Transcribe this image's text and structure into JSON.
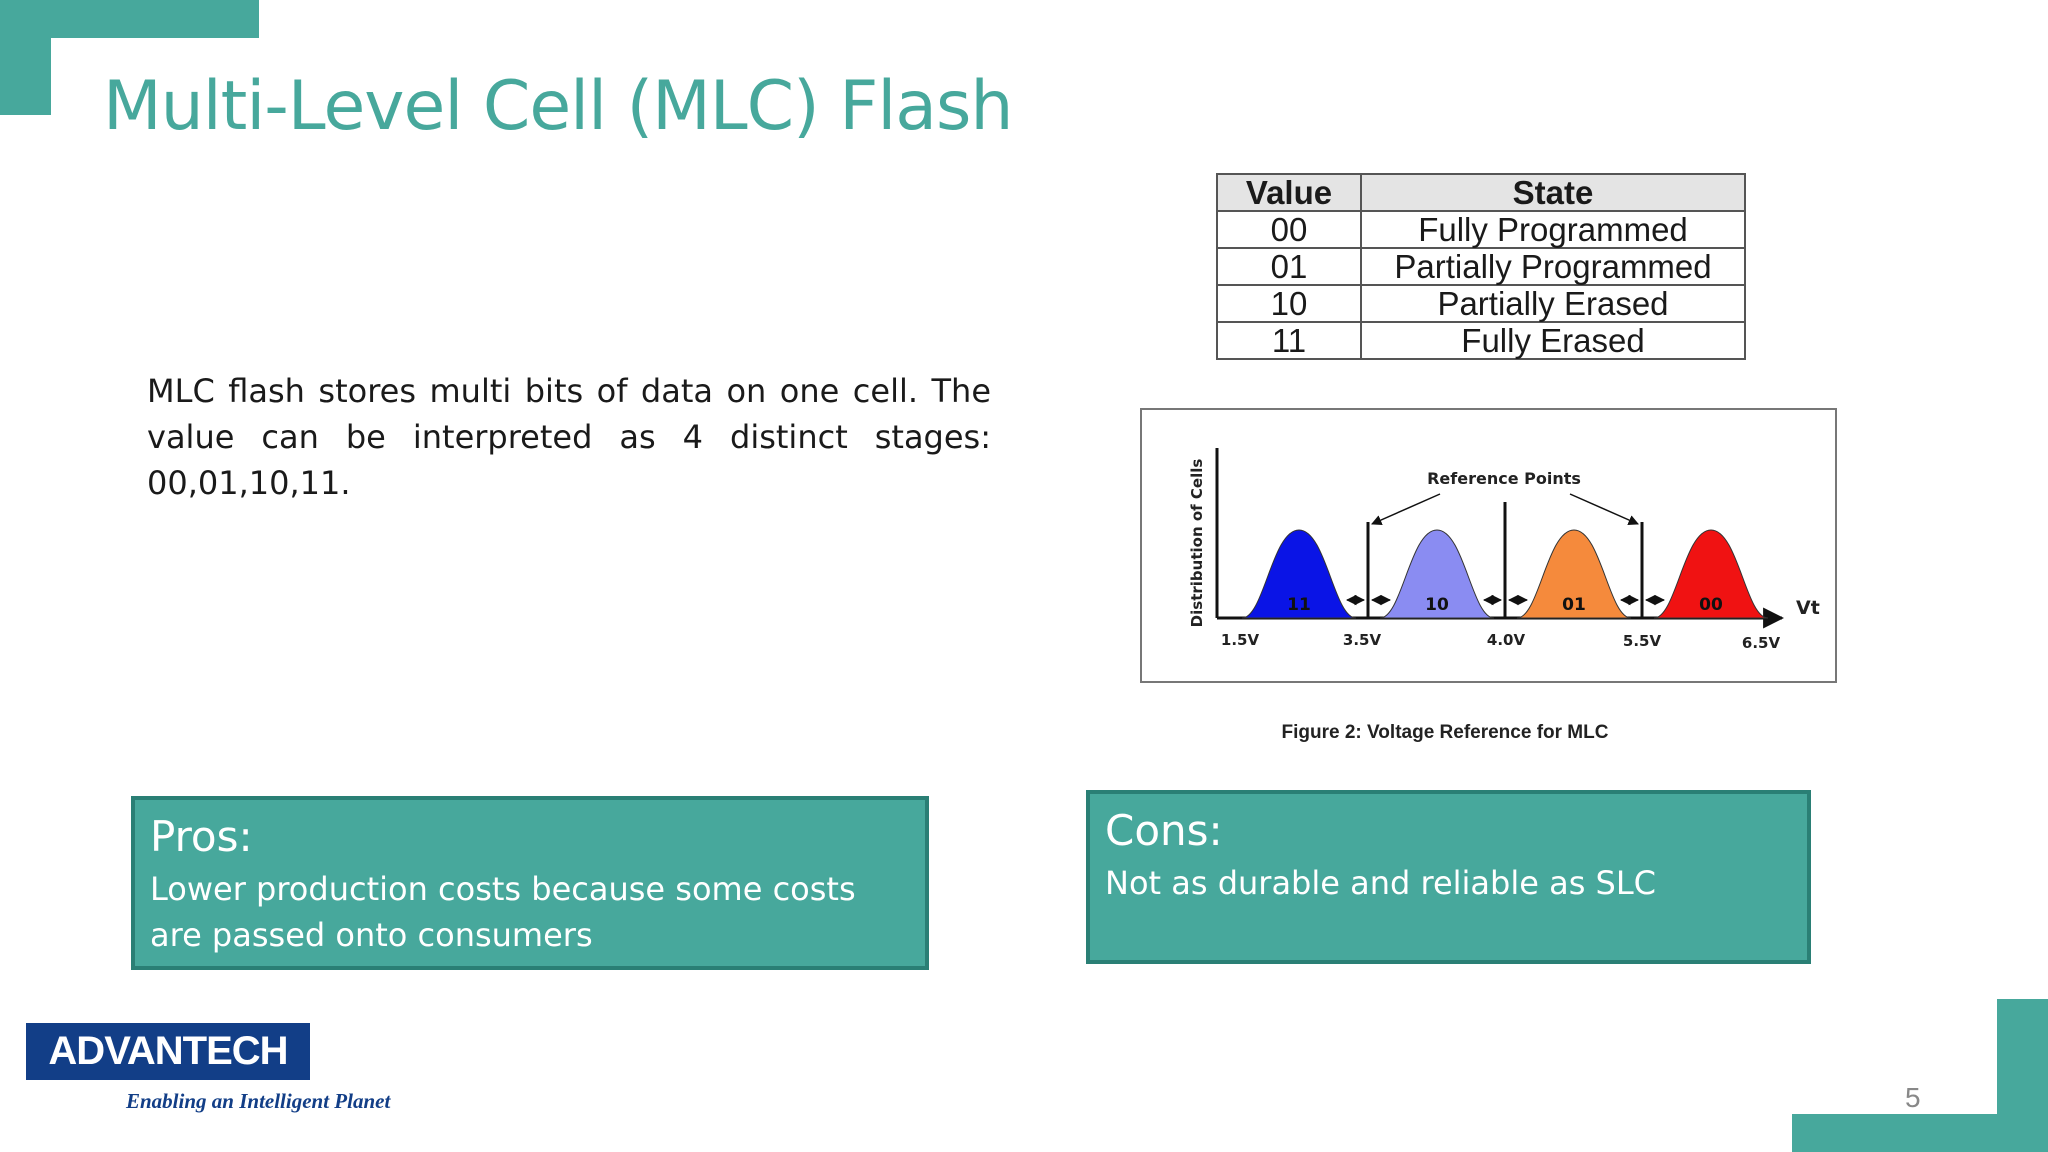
{
  "slide": {
    "title": "Multi-Level Cell (MLC) Flash",
    "intro": "MLC flash stores multi bits of data on one cell. The value can be interpreted as 4 distinct stages: 00,01,10,11.",
    "page_number": "5",
    "accent_color": "#47a89c"
  },
  "state_table": {
    "headers": [
      "Value",
      "State"
    ],
    "rows": [
      [
        "00",
        "Fully Programmed"
      ],
      [
        "01",
        "Partially Programmed"
      ],
      [
        "10",
        "Partially Erased"
      ],
      [
        "11",
        "Fully Erased"
      ]
    ]
  },
  "figure": {
    "y_axis_label": "Distribution of Cells",
    "x_axis_label": "Vt",
    "annotation": "Reference Points",
    "voltage_ticks": [
      "1.5V",
      "3.5V",
      "4.0V",
      "5.5V",
      "6.5V"
    ],
    "distributions": [
      {
        "label": "11",
        "color": "#0a14e6"
      },
      {
        "label": "10",
        "color": "#8a8cf2"
      },
      {
        "label": "01",
        "color": "#f58a3c"
      },
      {
        "label": "00",
        "color": "#f01212"
      }
    ],
    "caption": "Figure 2: Voltage Reference for MLC"
  },
  "pros": {
    "title": "Pros:",
    "text": "Lower production costs because some costs are passed onto consumers"
  },
  "cons": {
    "title": "Cons:",
    "text": "Not as durable and reliable as SLC"
  },
  "logo": {
    "wordmark": "ADVANTECH",
    "tagline": "Enabling an Intelligent Planet",
    "color": "#123e87"
  }
}
